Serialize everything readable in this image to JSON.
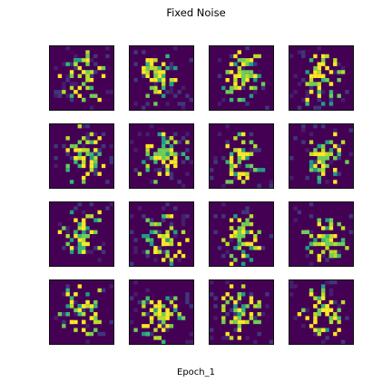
{
  "title": "Fixed Noise",
  "caption": "Epoch_1",
  "grid": {
    "rows": 4,
    "cols": 4
  },
  "colormap": {
    "name": "viridis",
    "background": "#440154",
    "stops": [
      "#440154",
      "#482777",
      "#3e4a89",
      "#31688e",
      "#26828e",
      "#1f9e89",
      "#35b779",
      "#6ece58",
      "#b5de2b",
      "#fde725"
    ]
  }
}
